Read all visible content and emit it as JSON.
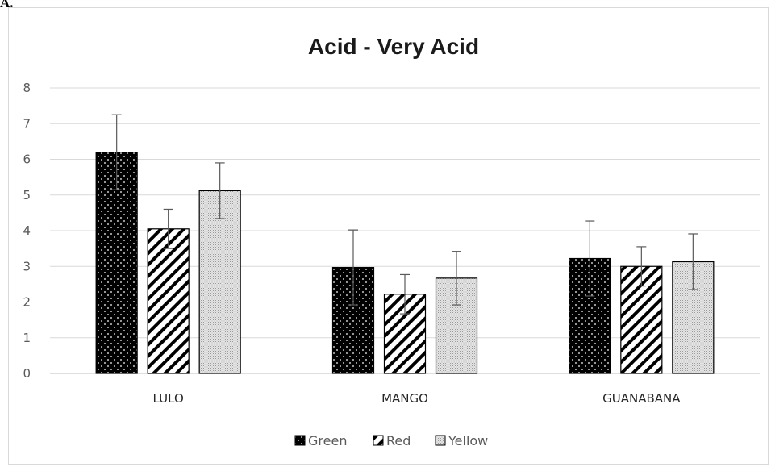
{
  "panel_label": "A.",
  "chart_data": {
    "type": "bar",
    "title": "Acid - Very Acid",
    "xlabel": "",
    "ylabel": "",
    "ylim": [
      0,
      8
    ],
    "yticks": [
      0,
      1,
      2,
      3,
      4,
      5,
      6,
      7,
      8
    ],
    "grid": true,
    "legend_position": "bottom",
    "categories": [
      "LULO",
      "MANGO",
      "GUANABANA"
    ],
    "series": [
      {
        "name": "Green",
        "pattern": "dots-on-black",
        "values": [
          6.2,
          2.97,
          3.22
        ],
        "errors": [
          1.05,
          1.05,
          1.05
        ]
      },
      {
        "name": "Red",
        "pattern": "diagonal-stripes",
        "values": [
          4.05,
          2.22,
          3.0
        ],
        "errors": [
          0.55,
          0.55,
          0.55
        ]
      },
      {
        "name": "Yellow",
        "pattern": "fine-gray-stipple",
        "values": [
          5.12,
          2.67,
          3.13
        ],
        "errors": [
          0.78,
          0.75,
          0.78
        ]
      }
    ],
    "colors": {
      "grid": "#d9d9d9",
      "axis": "#bfbfbf",
      "bar_edge": "#000000",
      "error_bar": "#595959"
    }
  }
}
